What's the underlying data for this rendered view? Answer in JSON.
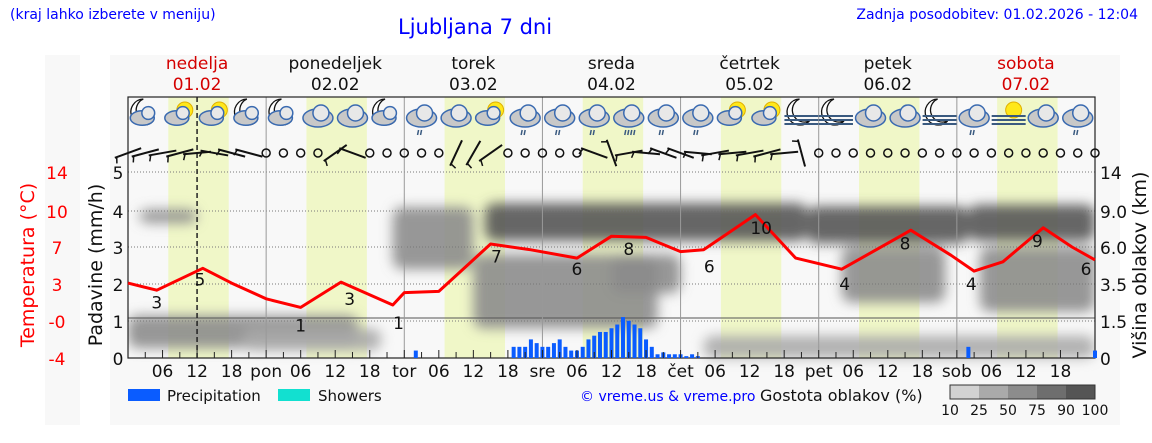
{
  "header": {
    "hint": "(kraj lahko izberete v meniju)",
    "title": "Ljubljana 7 dni",
    "updated": "Zadnja posodobitev: 01.02.2026 - 12:04"
  },
  "colors": {
    "temperature": "#ff0000",
    "precipitation": "#0a5cff",
    "showers": "#12e0d0",
    "weekend": "#d40000",
    "daylight": "#f0f7c8",
    "link": "#0000ff"
  },
  "days": [
    {
      "name": "nedelja",
      "date": "01.02",
      "abbr": "",
      "weekend": true
    },
    {
      "name": "ponedeljek",
      "date": "02.02",
      "abbr": "pon",
      "weekend": false
    },
    {
      "name": "torek",
      "date": "03.02",
      "abbr": "tor",
      "weekend": false
    },
    {
      "name": "sreda",
      "date": "04.02",
      "abbr": "sre",
      "weekend": false
    },
    {
      "name": "četrtek",
      "date": "05.02",
      "abbr": "čet",
      "weekend": false
    },
    {
      "name": "petek",
      "date": "06.02",
      "abbr": "pet",
      "weekend": false
    },
    {
      "name": "sobota",
      "date": "07.02",
      "abbr": "sob",
      "weekend": true
    }
  ],
  "chart_data": {
    "type": "line",
    "now_hour": 12,
    "hour_ticks": [
      "06",
      "12",
      "18"
    ],
    "daylight_hours": [
      7,
      17.5
    ],
    "axes": {
      "temperature": {
        "label": "Temperatura (°C)",
        "ticks": [
          "14",
          "10",
          "7",
          "3",
          "-0",
          "-4"
        ],
        "values": [
          14,
          10,
          7,
          3,
          0,
          -4
        ]
      },
      "precipitation": {
        "label": "Padavine (mm/h)",
        "ticks": [
          "5",
          "4",
          "3",
          "2",
          "1",
          "0"
        ],
        "ylim": [
          0,
          5
        ]
      },
      "cloud_height": {
        "label": "Višina oblakov (km)",
        "ticks": [
          "14",
          "9.0",
          "6.0",
          "3.5",
          "1.5",
          "0"
        ],
        "values": [
          14,
          9,
          6,
          3.5,
          1.5,
          0
        ]
      }
    },
    "temperature": {
      "hours": [
        0,
        5,
        13,
        18,
        24,
        30,
        37,
        46,
        48,
        54,
        63,
        70,
        78,
        84,
        90,
        96,
        100,
        109,
        116,
        124,
        136,
        143,
        147,
        152,
        159,
        164,
        168
      ],
      "values": [
        3.1,
        2.5,
        4.7,
        3.1,
        1.8,
        1.1,
        3.2,
        1.3,
        2.3,
        2.4,
        7.25,
        6.7,
        5.8,
        7.9,
        7.8,
        6.5,
        6.7,
        9.7,
        5.8,
        4.6,
        8.4,
        6.1,
        4.4,
        5.4,
        8.6,
        7.0,
        5.6
      ]
    },
    "temp_labels": [
      {
        "h": 5,
        "t": "3",
        "v": 1.5
      },
      {
        "h": 12.5,
        "t": "5",
        "v": 3.5
      },
      {
        "h": 30,
        "t": "1",
        "v": -0.5
      },
      {
        "h": 38.5,
        "t": "3",
        "v": 1.8
      },
      {
        "h": 47,
        "t": "1",
        "v": -0.2
      },
      {
        "h": 64,
        "t": "7",
        "v": 6
      },
      {
        "h": 78,
        "t": "6",
        "v": 4.6
      },
      {
        "h": 87,
        "t": "8",
        "v": 6.8
      },
      {
        "h": 101,
        "t": "6",
        "v": 4.9
      },
      {
        "h": 110,
        "t": "10",
        "v": 8.6
      },
      {
        "h": 124.5,
        "t": "4",
        "v": 3
      },
      {
        "h": 135,
        "t": "8",
        "v": 7.3
      },
      {
        "h": 146.5,
        "t": "4",
        "v": 3
      },
      {
        "h": 158,
        "t": "9",
        "v": 7.5
      },
      {
        "h": 167.5,
        "t": "6",
        "v": 4.6
      }
    ],
    "precipitation": {
      "hours": [
        50,
        67,
        68,
        69,
        70,
        71,
        72,
        73,
        74,
        75,
        76,
        77,
        78,
        79,
        80,
        81,
        82,
        83,
        84,
        85,
        86,
        87,
        88,
        89,
        90,
        91,
        92,
        93,
        94,
        95,
        96,
        97,
        98,
        99,
        146,
        168
      ],
      "values": [
        0.2,
        0.3,
        0.3,
        0.3,
        0.5,
        0.4,
        0.3,
        0.3,
        0.4,
        0.5,
        0.3,
        0.2,
        0.2,
        0.3,
        0.5,
        0.6,
        0.7,
        0.7,
        0.8,
        0.9,
        1.1,
        1.0,
        0.9,
        0.8,
        0.5,
        0.3,
        0.1,
        0.15,
        0.1,
        0.1,
        0.1,
        0.05,
        0.1,
        0.05,
        0.3,
        0.2
      ]
    },
    "cloud_cover": [
      {
        "h": [
          2,
          12
        ],
        "km": [
          8,
          9.2
        ],
        "pct": 50
      },
      {
        "h": [
          0,
          40
        ],
        "km": [
          0.4,
          1.8
        ],
        "pct": 50
      },
      {
        "h": [
          20,
          44
        ],
        "km": [
          0.3,
          1.2
        ],
        "pct": 40
      },
      {
        "h": [
          46,
          60
        ],
        "km": [
          4.5,
          9.5
        ],
        "pct": 60
      },
      {
        "h": [
          60,
          92
        ],
        "km": [
          1.2,
          5.5
        ],
        "pct": 60
      },
      {
        "h": [
          62,
          118
        ],
        "km": [
          6.5,
          10
        ],
        "pct": 90
      },
      {
        "h": [
          84,
          96
        ],
        "km": [
          3,
          5.5
        ],
        "pct": 50
      },
      {
        "h": [
          100,
          168
        ],
        "km": [
          0,
          0.9
        ],
        "pct": 25
      },
      {
        "h": [
          118,
          146
        ],
        "km": [
          6.3,
          9.6
        ],
        "pct": 90
      },
      {
        "h": [
          124,
          142
        ],
        "km": [
          2.5,
          6
        ],
        "pct": 50
      },
      {
        "h": [
          146,
          168
        ],
        "km": [
          6.5,
          9.8
        ],
        "pct": 90
      },
      {
        "h": [
          148,
          168
        ],
        "km": [
          2,
          6
        ],
        "pct": 50
      }
    ],
    "weather_icons": [
      "moon-cloud",
      "sun-cloud",
      "sun-cloud",
      "moon-cloud",
      "moon-cloud",
      "cloud",
      "cloud",
      "moon-cloud",
      "cloud-rain",
      "cloud",
      "sun-cloud",
      "cloud-rain",
      "cloud-rain",
      "cloud-rain",
      "cloud-heavy-rain",
      "cloud-rain",
      "cloud-rain",
      "sun-cloud",
      "sun-cloud",
      "moon-fog",
      "moon-fog",
      "cloud",
      "cloud",
      "moon-fog",
      "cloud-rain",
      "sun-fog",
      "cloud",
      "cloud-rain"
    ],
    "wind": [
      -20,
      -15,
      -10,
      -15,
      -5,
      10,
      15,
      15,
      null,
      null,
      null,
      null,
      -35,
      20,
      null,
      null,
      null,
      null,
      null,
      -65,
      -60,
      -35,
      null,
      null,
      null,
      null,
      null,
      20,
      70,
      -10,
      5,
      20,
      20,
      5,
      -10,
      -5,
      -10,
      -15,
      -5,
      75,
      null,
      null,
      null,
      null,
      null,
      null,
      null,
      null,
      null,
      null,
      null,
      null,
      null,
      null,
      null,
      null,
      null
    ],
    "legend": {
      "precipitation": "Precipitation",
      "showers": "Showers",
      "credit": "© vreme.us & vreme.pro",
      "cloud_density": "Gostota oblakov (%)",
      "density_ticks": [
        "10",
        "25",
        "50",
        "75",
        "90",
        "100"
      ],
      "density_colors": [
        "#d2d2d2",
        "#aaaaaa",
        "#8c8c8c",
        "#6e6e6e",
        "#555555"
      ]
    }
  }
}
